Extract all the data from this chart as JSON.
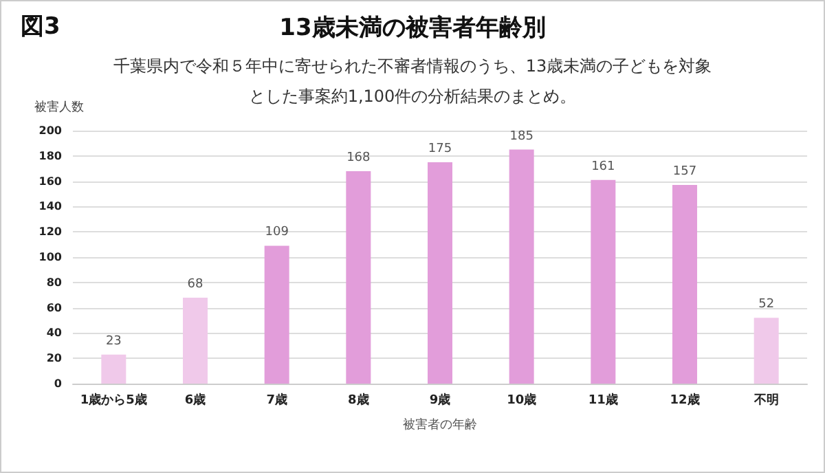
{
  "chart_data": {
    "type": "bar",
    "title": "13歳未満の被害者年齢別",
    "subtitle": "千葉県内で令和５年中に寄せられた不審者情報のうち、13歳未満の子どもを対象とした事案約1,100件の分析結果のまとめ。",
    "annotations": [
      "図3"
    ],
    "xlabel": "被害者の年齢",
    "ylabel": "被害人数",
    "categories": [
      "1歳から5歳",
      "6歳",
      "7歳",
      "8歳",
      "9歳",
      "10歳",
      "11歳",
      "12歳",
      "不明"
    ],
    "values": [
      23,
      68,
      109,
      168,
      175,
      185,
      161,
      157,
      52
    ],
    "colors": [
      "#f0c9ea",
      "#f0c9ea",
      "#e29dda",
      "#e29dda",
      "#e29dda",
      "#e29dda",
      "#e29dda",
      "#e29dda",
      "#f0c9ea"
    ],
    "ylim": [
      0,
      200
    ],
    "yticks": [
      0,
      20,
      40,
      60,
      80,
      100,
      120,
      140,
      160,
      180,
      200
    ],
    "grid": "y",
    "data_labels": true
  }
}
